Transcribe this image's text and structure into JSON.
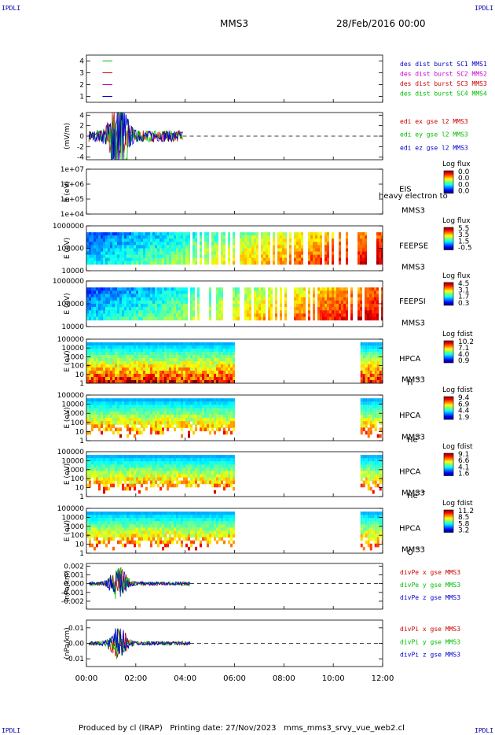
{
  "header": {
    "corner_label": "IPDLI",
    "spacecraft": "MMS3",
    "date": "28/Feb/2016 00:00"
  },
  "footer": {
    "text": "Produced by cl (IRAP)   Printing date: 27/Nov/2023   mms_mms3_srvy_vue_web2.cl"
  },
  "chart_data": {
    "type": "multi-panel-timeseries",
    "time_axis": {
      "range_hours": [
        0,
        12
      ],
      "ticks": [
        0,
        2,
        4,
        6,
        8,
        10,
        12
      ],
      "tick_labels": [
        "00:00",
        "02:00",
        "04:00",
        "06:00",
        "08:00",
        "10:00",
        "12:00"
      ]
    },
    "panels": [
      {
        "id": "burst",
        "type": "line",
        "ylabel": "",
        "yticks": [
          1,
          2,
          3,
          4
        ],
        "ylim": [
          0.5,
          4.5
        ],
        "legend": [
          {
            "name": "des dist burst SC1 MMS1",
            "color": "#0000cc"
          },
          {
            "name": "des dist burst SC2 MMS2",
            "color": "#cc00cc"
          },
          {
            "name": "des dist burst SC3 MMS3",
            "color": "#cc0000"
          },
          {
            "name": "des dist burst SC4 MMS4",
            "color": "#00bb00"
          }
        ]
      },
      {
        "id": "edi",
        "type": "scatter",
        "ylabel": "(mV/m)",
        "yticks": [
          -4,
          -2,
          0,
          2,
          4
        ],
        "ylim": [
          -4.5,
          4.5
        ],
        "data_range_hours": [
          0.1,
          3.9
        ],
        "legend": [
          {
            "name": "edi ex gse l2 MMS3",
            "color": "#cc0000"
          },
          {
            "name": "edi ey gse l2 MMS3",
            "color": "#00bb00"
          },
          {
            "name": "edi ez gse l2 MMS3",
            "color": "#0000cc"
          }
        ]
      },
      {
        "id": "eis",
        "type": "heatmap",
        "ylabel": "E (eV)",
        "yticks_labels": [
          "1e+04",
          "1e+05",
          "1e+06",
          "1e+07"
        ],
        "ylim_log10": [
          4,
          7
        ],
        "inst": "EIS",
        "sc": "MMS3",
        "extra": "heavy electron to",
        "cbar_title": "Log flux",
        "cbar_ticks": [
          "0.0",
          "0.0",
          "0.0",
          "0.0"
        ],
        "data_range_hours": []
      },
      {
        "id": "feepse",
        "type": "heatmap",
        "ylabel": "E (eV)",
        "yticks_labels": [
          "10000",
          "100000",
          "1000000"
        ],
        "ylim_log10": [
          4,
          6
        ],
        "inst": "FEEPSE",
        "sc": "MMS3",
        "cbar_title": "Log flux",
        "cbar_ticks": [
          "5.5",
          "3.5",
          "1.5",
          "-0.5"
        ],
        "data_range_hours": [
          0,
          12
        ]
      },
      {
        "id": "feepsi",
        "type": "heatmap",
        "ylabel": "E (eV)",
        "yticks_labels": [
          "10000",
          "100000",
          "1000000"
        ],
        "ylim_log10": [
          4,
          6
        ],
        "inst": "FEEPSI",
        "sc": "MMS3",
        "cbar_title": "Log flux",
        "cbar_ticks": [
          "4.5",
          "3.1",
          "1.7",
          "0.3"
        ],
        "data_range_hours": [
          0,
          12
        ]
      },
      {
        "id": "hpca_h",
        "type": "heatmap",
        "ylabel": "E (eV)",
        "yticks_labels": [
          "1",
          "10",
          "100",
          "1000",
          "10000",
          "100000"
        ],
        "ylim_log10": [
          0,
          5
        ],
        "inst": "HPCA",
        "sc": "MMS3",
        "species": "H",
        "charge": "+",
        "cbar_title": "Log fdist",
        "cbar_ticks": [
          "10.2",
          "7.1",
          "4.0",
          "0.9"
        ],
        "data_range_hours": [
          0,
          6,
          11.1,
          12
        ]
      },
      {
        "id": "hpca_he",
        "type": "heatmap",
        "ylabel": "E (eV)",
        "yticks_labels": [
          "1",
          "10",
          "100",
          "1000",
          "10000",
          "100000"
        ],
        "ylim_log10": [
          0,
          5
        ],
        "inst": "HPCA",
        "sc": "MMS3",
        "species": "He",
        "charge": "+",
        "cbar_title": "Log fdist",
        "cbar_ticks": [
          "9.4",
          "6.9",
          "4.4",
          "1.9"
        ],
        "data_range_hours": [
          0,
          6,
          11.1,
          12
        ]
      },
      {
        "id": "hpca_hepp",
        "type": "heatmap",
        "ylabel": "E (eV)",
        "yticks_labels": [
          "1",
          "10",
          "100",
          "1000",
          "10000",
          "100000"
        ],
        "ylim_log10": [
          0,
          5
        ],
        "inst": "HPCA",
        "sc": "MMS3",
        "species": "He",
        "charge": "++",
        "cbar_title": "Log fdist",
        "cbar_ticks": [
          "9.1",
          "6.6",
          "4.1",
          "1.6"
        ],
        "data_range_hours": [
          0,
          6,
          11.1,
          12
        ]
      },
      {
        "id": "hpca_o",
        "type": "heatmap",
        "ylabel": "E (eV)",
        "yticks_labels": [
          "1",
          "10",
          "100",
          "1000",
          "10000",
          "100000"
        ],
        "ylim_log10": [
          0,
          5
        ],
        "inst": "HPCA",
        "sc": "MMS3",
        "species": "O",
        "charge": "+",
        "cbar_title": "Log fdist",
        "cbar_ticks": [
          "11.2",
          "8.5",
          "5.8",
          "3.2"
        ],
        "data_range_hours": [
          0,
          6,
          11.1,
          12
        ]
      },
      {
        "id": "divpe",
        "type": "line",
        "ylabel": "(nPa/km)",
        "yticks": [
          -0.002,
          -0.001,
          0,
          0.001,
          0.002
        ],
        "ytick_labels": [
          "-0.002",
          "-0.001",
          "0.000",
          "0.001",
          "0.002"
        ],
        "ylim": [
          -0.0029,
          0.0023
        ],
        "data_range_hours": [
          0.1,
          4.2
        ],
        "legend": [
          {
            "name": "divPe x gse MMS3",
            "color": "#cc0000"
          },
          {
            "name": "divPe y gse MMS3",
            "color": "#00bb00"
          },
          {
            "name": "divPe z gse MMS3",
            "color": "#0000cc"
          }
        ]
      },
      {
        "id": "divpi",
        "type": "line",
        "ylabel": "(nPa/km)",
        "yticks": [
          -0.01,
          0,
          0.01
        ],
        "ytick_labels": [
          "-0.01",
          "0.00",
          "0.01"
        ],
        "ylim": [
          -0.015,
          0.015
        ],
        "data_range_hours": [
          0.1,
          4.2
        ],
        "legend": [
          {
            "name": "divPi x gse MMS3",
            "color": "#cc0000"
          },
          {
            "name": "divPi y gse MMS3",
            "color": "#00bb00"
          },
          {
            "name": "divPi z gse MMS3",
            "color": "#0000cc"
          }
        ]
      }
    ]
  }
}
